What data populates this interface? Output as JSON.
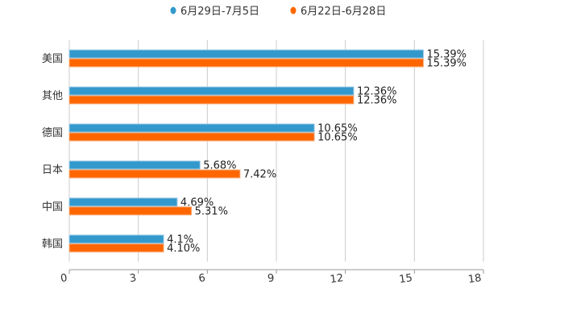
{
  "chart_data": {
    "type": "bar",
    "orientation": "horizontal",
    "categories": [
      "美国",
      "其他",
      "德国",
      "日本",
      "中国",
      "韩国"
    ],
    "series": [
      {
        "name": "6月29日-7月5日",
        "color": "#3399cc",
        "values": [
          15.39,
          12.36,
          10.65,
          5.68,
          4.69,
          4.1
        ],
        "labels": [
          "15.39%",
          "12.36%",
          "10.65%",
          "5.68%",
          "4.69%",
          "4.1%"
        ]
      },
      {
        "name": "6月22日-6月28日",
        "color": "#ff6600",
        "values": [
          15.39,
          12.36,
          10.65,
          7.42,
          5.31,
          4.1
        ],
        "labels": [
          "15.39%",
          "12.36%",
          "10.65%",
          "7.42%",
          "5.31%",
          "4.10%"
        ]
      }
    ],
    "xlim": [
      0,
      18
    ],
    "xticks": [
      "0",
      "3",
      "6",
      "9",
      "12",
      "15",
      "18"
    ],
    "grid": true,
    "legend": "top-center",
    "title": "",
    "xlabel": "",
    "ylabel": ""
  }
}
